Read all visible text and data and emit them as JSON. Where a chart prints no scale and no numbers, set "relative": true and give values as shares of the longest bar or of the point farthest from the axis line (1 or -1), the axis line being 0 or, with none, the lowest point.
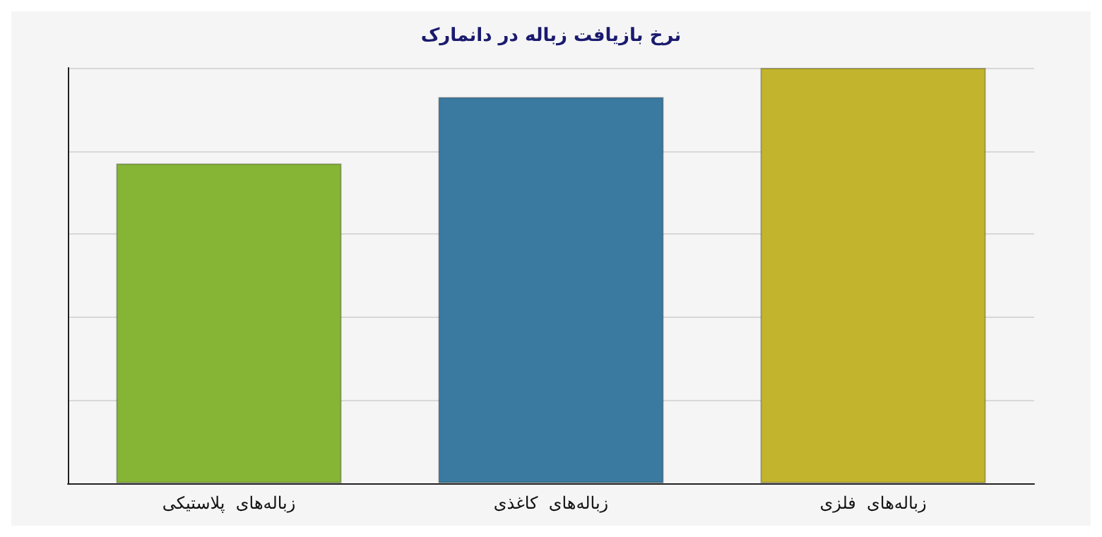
{
  "chart_data": {
    "type": "bar",
    "title": "نرخ بازیافت زباله در دانمارک",
    "categories": [
      "زباله‌های  پلاستیکی",
      "زباله‌های  کاغذی",
      "زباله‌های  فلزی"
    ],
    "values": [
      0.77,
      0.93,
      1
    ],
    "colors": [
      "#86b536",
      "#3a7aa0",
      "#c2b42c"
    ],
    "relative": true,
    "grid": "y"
  }
}
